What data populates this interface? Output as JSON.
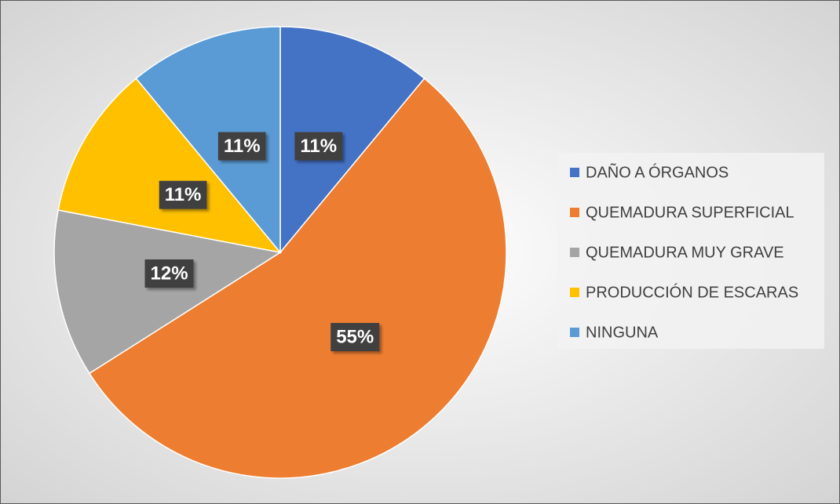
{
  "chart_data": {
    "type": "pie",
    "categories": [
      "DAÑO A ÓRGANOS",
      "QUEMADURA SUPERFICIAL",
      "QUEMADURA MUY GRAVE",
      "PRODUCCIÓN DE ESCARAS",
      "NINGUNA"
    ],
    "values": [
      11,
      55,
      12,
      11,
      11
    ],
    "value_labels": [
      "11%",
      "55%",
      "12%",
      "11%",
      "11%"
    ],
    "colors": [
      "#4472c4",
      "#ed7d31",
      "#a5a5a5",
      "#ffc000",
      "#5b9bd5"
    ],
    "legend": "right"
  }
}
